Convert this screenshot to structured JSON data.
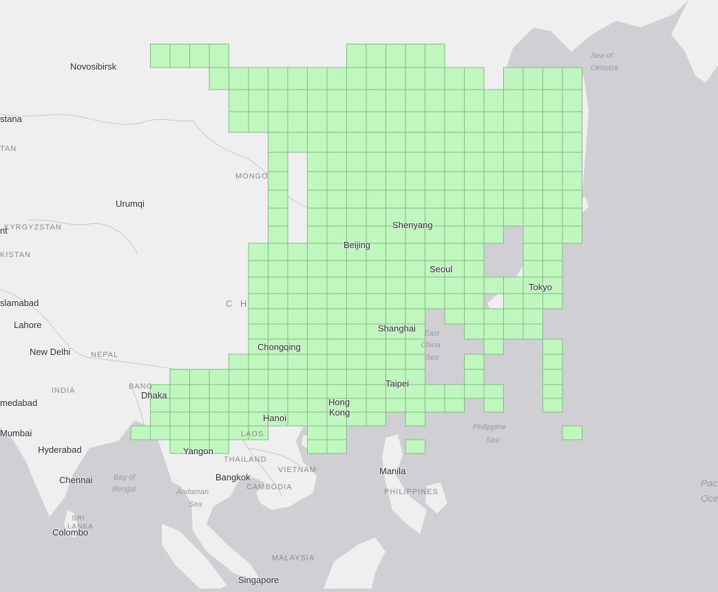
{
  "map": {
    "colors": {
      "water": "#cfcfd4",
      "land": "#efefef",
      "border": "#c7c7c7",
      "tile_fill": "#bff7bf",
      "tile_stroke": "#82b882"
    },
    "city_labels": [
      "Novosibirsk",
      "stana",
      "Urumqi",
      "nt",
      "slamabad",
      "Lahore",
      "New Delhi",
      "medabad",
      "Mumbai",
      "Hyderabad",
      "Chennai",
      "Colombo",
      "Dhaka",
      "Yangon",
      "Bangkok",
      "Hanoi",
      "Singapore",
      "Manila",
      "Hong",
      "Kong",
      "Taipei",
      "Chongqing",
      "Shanghai",
      "Beijing",
      "Shenyang",
      "Seoul",
      "Tokyo"
    ],
    "country_labels": [
      "TAN",
      "MONGO",
      "KYRGYZSTAN",
      "KISTAN",
      "C H",
      "NEPAL",
      "INDIA",
      "BANG",
      "LAOS",
      "THAILAND",
      "VIETNAM",
      "CAMBODIA",
      "PHILIPPINES",
      "MALAYSIA",
      "SRI",
      "LANKA"
    ],
    "water_labels": [
      "Sea of",
      "Okhotsk",
      "East",
      "China",
      "Sea",
      "Philippine",
      "Sea",
      "Bay of",
      "Bengal",
      "Andaman",
      "Sea",
      "Pac",
      "Oce"
    ]
  }
}
